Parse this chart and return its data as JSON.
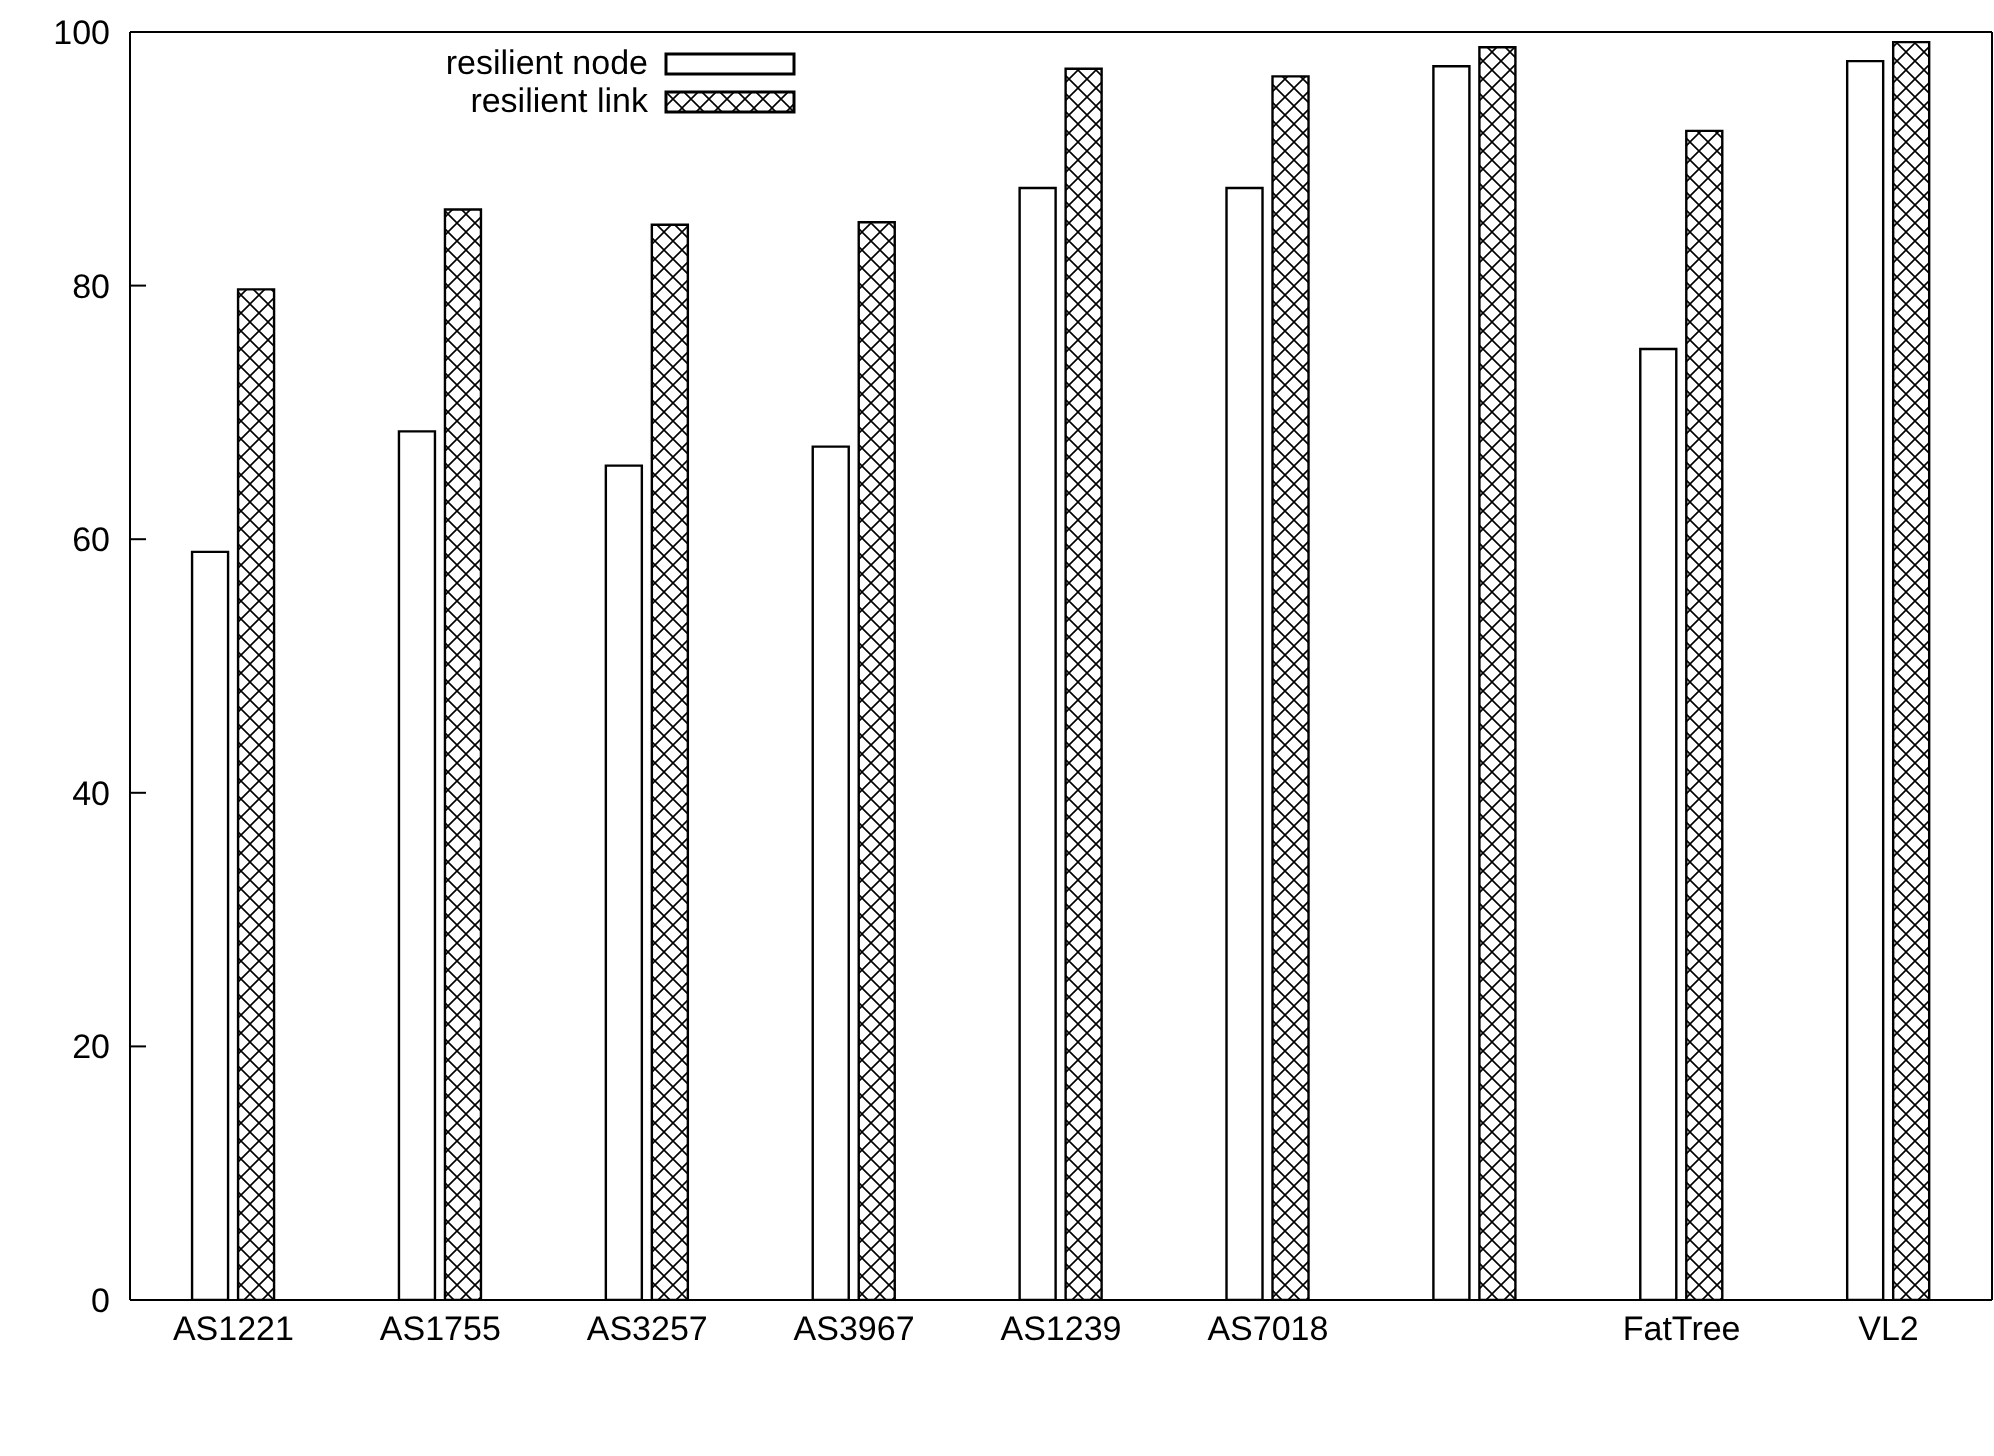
{
  "chart_data": {
    "type": "bar",
    "categories": [
      "AS1221",
      "AS1755",
      "AS3257",
      "AS3967",
      "AS1239",
      "AS7018",
      null,
      "FatTree",
      "VL2"
    ],
    "series": [
      {
        "name": "resilient node",
        "color": "#ffffff",
        "values": [
          59,
          68.5,
          65.8,
          67.3,
          87.7,
          87.7,
          97.3,
          75,
          97.7
        ]
      },
      {
        "name": "resilient link",
        "color": "#000000",
        "values": [
          79.7,
          86,
          84.8,
          85,
          97.1,
          96.5,
          98.8,
          92.2,
          99.2
        ]
      }
    ],
    "ylim": [
      0,
      100
    ],
    "yticks": [
      0,
      20,
      40,
      60,
      80,
      100
    ],
    "legend": "top left"
  }
}
